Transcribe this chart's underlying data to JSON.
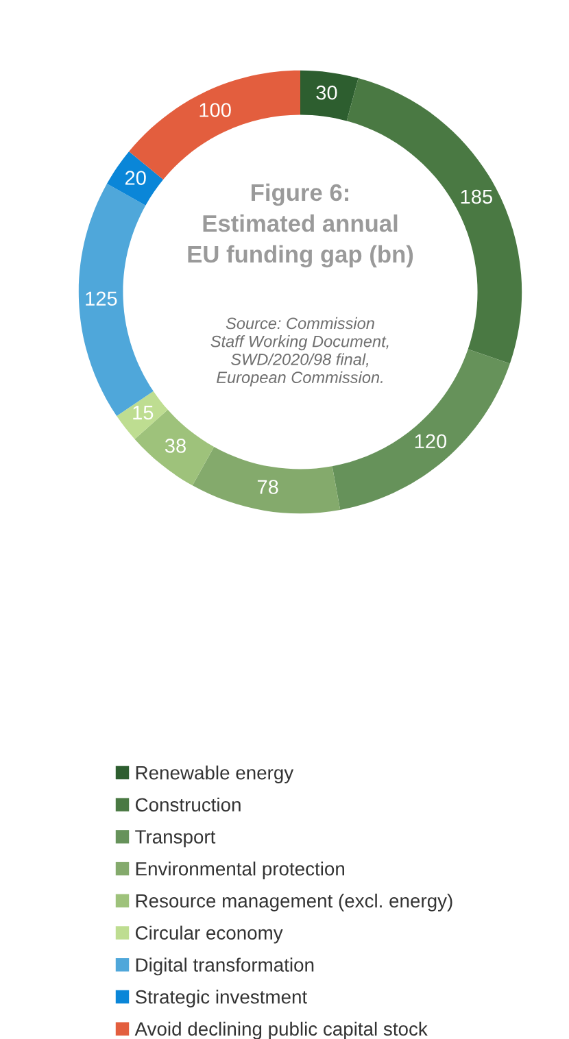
{
  "chart_data": {
    "type": "donut",
    "title": "Figure 6:\nEstimated annual\nEU funding gap (bn)",
    "annotations": [
      "Source: Commission\nStaff Working Document,\nSWD/2020/98 final,\nEuropean Commission."
    ],
    "categories": [
      "Renewable energy",
      "Construction",
      "Transport",
      "Environmental protection",
      "Resource management (excl. energy)",
      "Circular economy",
      "Digital transformation",
      "Strategic investment",
      "Avoid declining public capital stock"
    ],
    "values": [
      30,
      185,
      120,
      78,
      38,
      15,
      125,
      20,
      100
    ],
    "colors": [
      "#2d5e2f",
      "#4a7943",
      "#66925a",
      "#84aa6c",
      "#9ec27b",
      "#bedd91",
      "#4fa7da",
      "#0a86d8",
      "#e35e3e"
    ],
    "data_labels": true,
    "legend": "bottom"
  }
}
